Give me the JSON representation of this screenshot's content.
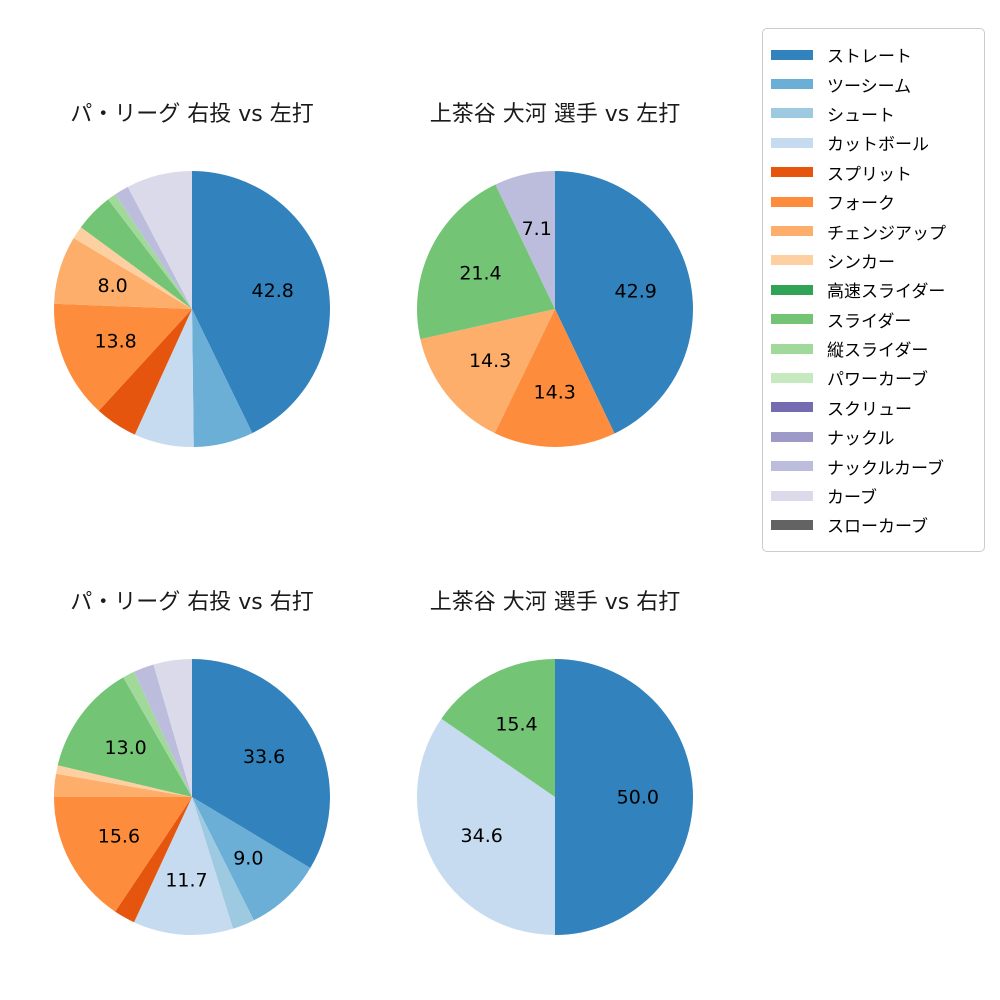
{
  "page": {
    "background": "#ffffff",
    "description": "Four pie charts of pitch type usage percentages with shared legend"
  },
  "chart_data": [
    {
      "type": "pie",
      "title": "パ・リーグ 右投 vs 左打",
      "start_angle": "top",
      "direction": "clockwise",
      "legend_position": "outside-right",
      "segments": [
        {
          "label": "ストレート",
          "value": 42.8,
          "color": "#3182bd",
          "value_label": "42.8"
        },
        {
          "label": "ツーシーム",
          "value": 7.0,
          "color": "#6baed6",
          "value_label": null
        },
        {
          "label": "カットボール",
          "value": 7.0,
          "color": "#c6dbef",
          "value_label": null
        },
        {
          "label": "スプリット",
          "value": 5.0,
          "color": "#e6550d",
          "value_label": null
        },
        {
          "label": "フォーク",
          "value": 13.8,
          "color": "#fd8d3c",
          "value_label": "13.8"
        },
        {
          "label": "チェンジアップ",
          "value": 8.0,
          "color": "#fdae6b",
          "value_label": "8.0"
        },
        {
          "label": "シンカー",
          "value": 1.5,
          "color": "#fdd0a2",
          "value_label": null
        },
        {
          "label": "スライダー",
          "value": 4.5,
          "color": "#74c476",
          "value_label": null
        },
        {
          "label": "縦スライダー",
          "value": 1.0,
          "color": "#a1d99b",
          "value_label": null
        },
        {
          "label": "ナックルカーブ",
          "value": 1.7,
          "color": "#bcbddc",
          "value_label": null
        },
        {
          "label": "カーブ",
          "value": 7.7,
          "color": "#dadaeb",
          "value_label": null
        }
      ]
    },
    {
      "type": "pie",
      "title": "上茶谷 大河 選手 vs 左打",
      "start_angle": "top",
      "direction": "clockwise",
      "legend_position": "outside-right",
      "segments": [
        {
          "label": "ストレート",
          "value": 42.9,
          "color": "#3182bd",
          "value_label": "42.9"
        },
        {
          "label": "フォーク",
          "value": 14.3,
          "color": "#fd8d3c",
          "value_label": "14.3"
        },
        {
          "label": "チェンジアップ",
          "value": 14.3,
          "color": "#fdae6b",
          "value_label": "14.3"
        },
        {
          "label": "スライダー",
          "value": 21.4,
          "color": "#74c476",
          "value_label": "21.4"
        },
        {
          "label": "ナックルカーブ",
          "value": 7.1,
          "color": "#bcbddc",
          "value_label": "7.1"
        }
      ]
    },
    {
      "type": "pie",
      "title": "パ・リーグ 右投 vs 右打",
      "start_angle": "top",
      "direction": "clockwise",
      "legend_position": "outside-right",
      "segments": [
        {
          "label": "ストレート",
          "value": 33.6,
          "color": "#3182bd",
          "value_label": "33.6"
        },
        {
          "label": "ツーシーム",
          "value": 9.0,
          "color": "#6baed6",
          "value_label": "9.0"
        },
        {
          "label": "シュート",
          "value": 2.6,
          "color": "#9ecae1",
          "value_label": null
        },
        {
          "label": "カットボール",
          "value": 11.7,
          "color": "#c6dbef",
          "value_label": "11.7"
        },
        {
          "label": "スプリット",
          "value": 2.5,
          "color": "#e6550d",
          "value_label": null
        },
        {
          "label": "フォーク",
          "value": 15.6,
          "color": "#fd8d3c",
          "value_label": "15.6"
        },
        {
          "label": "チェンジアップ",
          "value": 2.7,
          "color": "#fdae6b",
          "value_label": null
        },
        {
          "label": "シンカー",
          "value": 1.0,
          "color": "#fdd0a2",
          "value_label": null
        },
        {
          "label": "スライダー",
          "value": 13.0,
          "color": "#74c476",
          "value_label": "13.0"
        },
        {
          "label": "縦スライダー",
          "value": 1.4,
          "color": "#a1d99b",
          "value_label": null
        },
        {
          "label": "ナックルカーブ",
          "value": 2.4,
          "color": "#bcbddc",
          "value_label": null
        },
        {
          "label": "カーブ",
          "value": 4.5,
          "color": "#dadaeb",
          "value_label": null
        }
      ]
    },
    {
      "type": "pie",
      "title": "上茶谷 大河 選手 vs 右打",
      "start_angle": "top",
      "direction": "clockwise",
      "legend_position": "outside-right",
      "segments": [
        {
          "label": "ストレート",
          "value": 50.0,
          "color": "#3182bd",
          "value_label": "50.0"
        },
        {
          "label": "カットボール",
          "value": 34.6,
          "color": "#c6dbef",
          "value_label": "34.6"
        },
        {
          "label": "スライダー",
          "value": 15.4,
          "color": "#74c476",
          "value_label": "15.4"
        }
      ]
    }
  ],
  "legend": {
    "items": [
      {
        "label": "ストレート",
        "color": "#3182bd"
      },
      {
        "label": "ツーシーム",
        "color": "#6baed6"
      },
      {
        "label": "シュート",
        "color": "#9ecae1"
      },
      {
        "label": "カットボール",
        "color": "#c6dbef"
      },
      {
        "label": "スプリット",
        "color": "#e6550d"
      },
      {
        "label": "フォーク",
        "color": "#fd8d3c"
      },
      {
        "label": "チェンジアップ",
        "color": "#fdae6b"
      },
      {
        "label": "シンカー",
        "color": "#fdd0a2"
      },
      {
        "label": "高速スライダー",
        "color": "#31a354"
      },
      {
        "label": "スライダー",
        "color": "#74c476"
      },
      {
        "label": "縦スライダー",
        "color": "#a1d99b"
      },
      {
        "label": "パワーカーブ",
        "color": "#c7e9c0"
      },
      {
        "label": "スクリュー",
        "color": "#756bb1"
      },
      {
        "label": "ナックル",
        "color": "#9e9ac8"
      },
      {
        "label": "ナックルカーブ",
        "color": "#bcbddc"
      },
      {
        "label": "カーブ",
        "color": "#dadaeb"
      },
      {
        "label": "スローカーブ",
        "color": "#636363"
      }
    ]
  }
}
